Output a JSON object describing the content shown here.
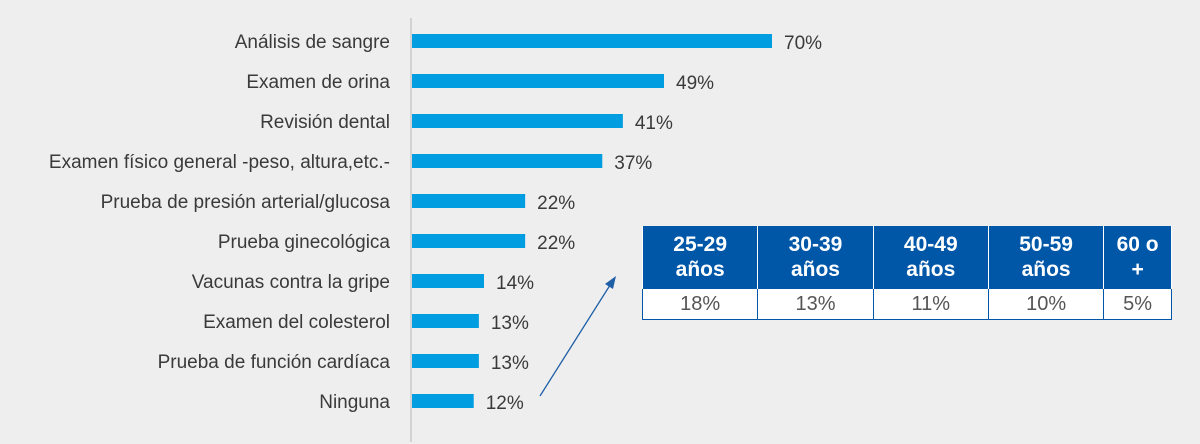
{
  "chart_data": {
    "type": "bar",
    "orientation": "horizontal",
    "categories": [
      "Análisis de sangre",
      "Examen de orina",
      "Revisión dental",
      "Examen físico general -peso, altura,etc.-",
      "Prueba de presión arterial/glucosa",
      "Prueba ginecológica",
      "Vacunas contra la gripe",
      "Examen del colesterol",
      "Prueba de función cardíaca",
      "Ninguna"
    ],
    "values": [
      70,
      49,
      41,
      37,
      22,
      22,
      14,
      13,
      13,
      12
    ],
    "value_labels": [
      "70%",
      "49%",
      "41%",
      "37%",
      "22%",
      "22%",
      "14%",
      "13%",
      "13%",
      "12%"
    ],
    "xlim": [
      0,
      70
    ],
    "grid": false,
    "bar_color": "#009ee0"
  },
  "age_table": {
    "headers": [
      "25-29 años",
      "30-39 años",
      "40-49 años",
      "50-59 años",
      "60 o +"
    ],
    "values": [
      "18%",
      "13%",
      "11%",
      "10%",
      "5%"
    ],
    "header_color": "#0057a8"
  }
}
